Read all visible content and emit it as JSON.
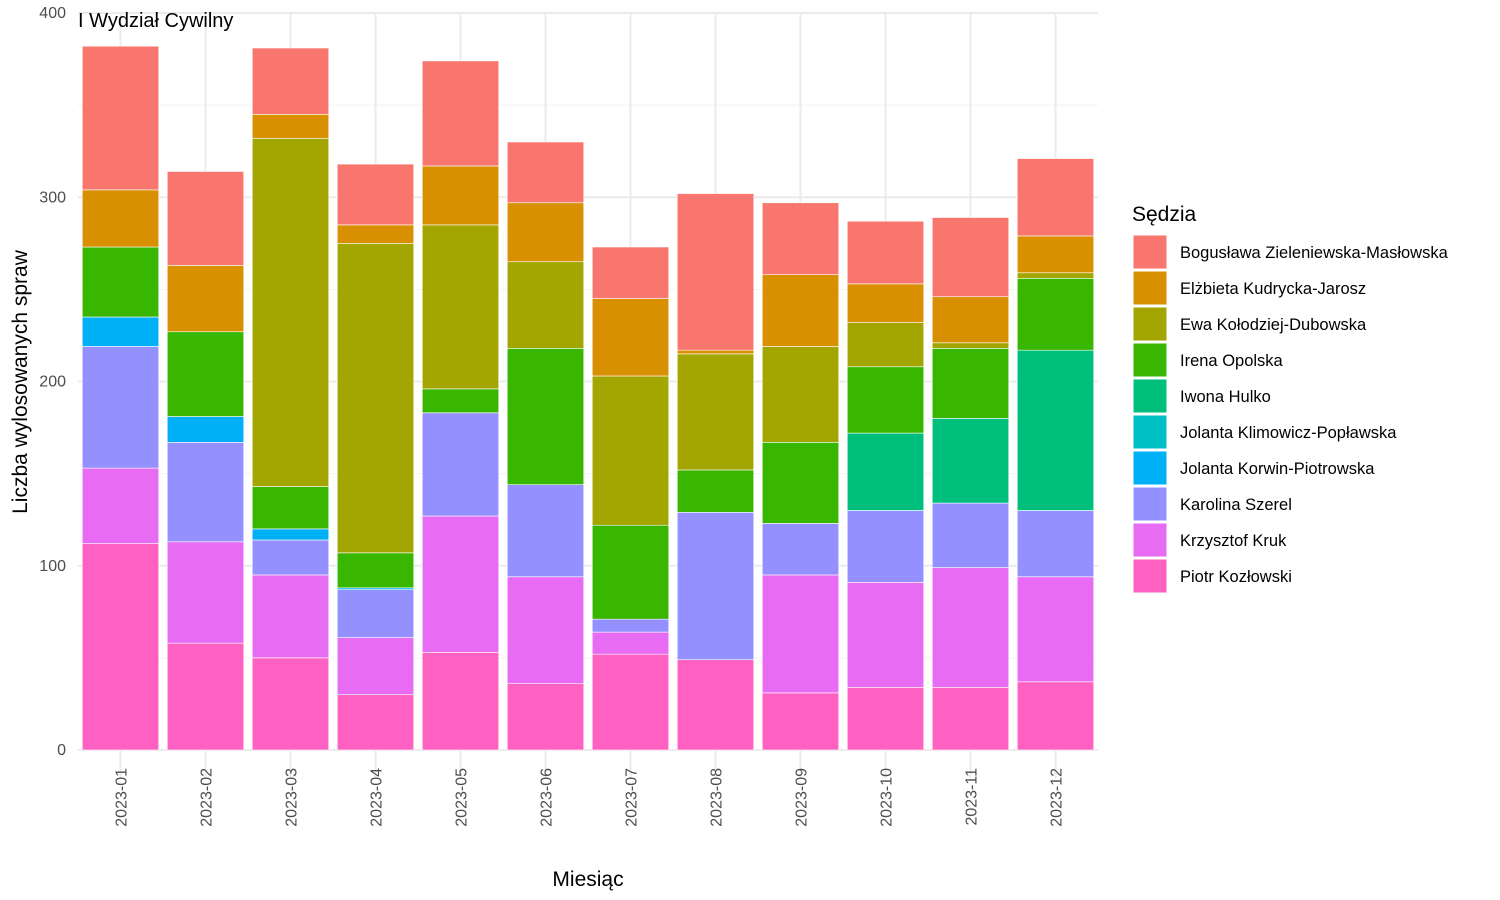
{
  "chart_data": {
    "type": "bar",
    "stacked": true,
    "title": "I Wydział Cywilny",
    "xlabel": "Miesiąc",
    "ylabel": "Liczba wylosowanych spraw",
    "ylim": [
      0,
      400
    ],
    "yticks": [
      0,
      100,
      200,
      300,
      400
    ],
    "grid": true,
    "legend_position": "right",
    "legend_title": "Sędzia",
    "categories": [
      "2023-01",
      "2023-02",
      "2023-03",
      "2023-04",
      "2023-05",
      "2023-06",
      "2023-07",
      "2023-08",
      "2023-09",
      "2023-10",
      "2023-11",
      "2023-12"
    ],
    "series": [
      {
        "name": "Piotr Kozłowski",
        "color": "#FF61C3",
        "values": [
          112,
          58,
          50,
          30,
          53,
          36,
          52,
          49,
          31,
          34,
          34,
          37
        ]
      },
      {
        "name": "Krzysztof Kruk",
        "color": "#E76BF3",
        "values": [
          41,
          55,
          45,
          31,
          74,
          58,
          12,
          0,
          64,
          57,
          65,
          57
        ]
      },
      {
        "name": "Karolina Szerel",
        "color": "#9590FF",
        "values": [
          66,
          54,
          19,
          26,
          56,
          50,
          7,
          80,
          28,
          39,
          35,
          36
        ]
      },
      {
        "name": "Jolanta Korwin-Piotrowska",
        "color": "#00B0F6",
        "values": [
          16,
          14,
          6,
          1,
          0,
          0,
          0,
          0,
          0,
          0,
          0,
          0
        ]
      },
      {
        "name": "Jolanta Klimowicz-Popławska",
        "color": "#00BFC4",
        "values": [
          0,
          0,
          0,
          0,
          0,
          0,
          0,
          0,
          0,
          0,
          0,
          0
        ]
      },
      {
        "name": "Iwona Hulko",
        "color": "#00BF7D",
        "values": [
          0,
          0,
          0,
          0,
          0,
          0,
          0,
          0,
          0,
          42,
          46,
          87
        ]
      },
      {
        "name": "Irena Opolska",
        "color": "#39B600",
        "values": [
          38,
          46,
          23,
          19,
          13,
          74,
          51,
          23,
          44,
          36,
          38,
          39
        ]
      },
      {
        "name": "Ewa Kołodziej-Dubowska",
        "color": "#A3A500",
        "values": [
          0,
          0,
          189,
          168,
          89,
          47,
          81,
          63,
          52,
          24,
          3,
          3
        ]
      },
      {
        "name": "Elżbieta Kudrycka-Jarosz",
        "color": "#D89000",
        "values": [
          31,
          36,
          13,
          10,
          32,
          32,
          42,
          2,
          39,
          21,
          25,
          20
        ]
      },
      {
        "name": "Bogusława Zieleniewska-Masłowska",
        "color": "#F8766D",
        "values": [
          78,
          51,
          36,
          33,
          57,
          33,
          28,
          85,
          39,
          34,
          43,
          42
        ]
      }
    ]
  }
}
